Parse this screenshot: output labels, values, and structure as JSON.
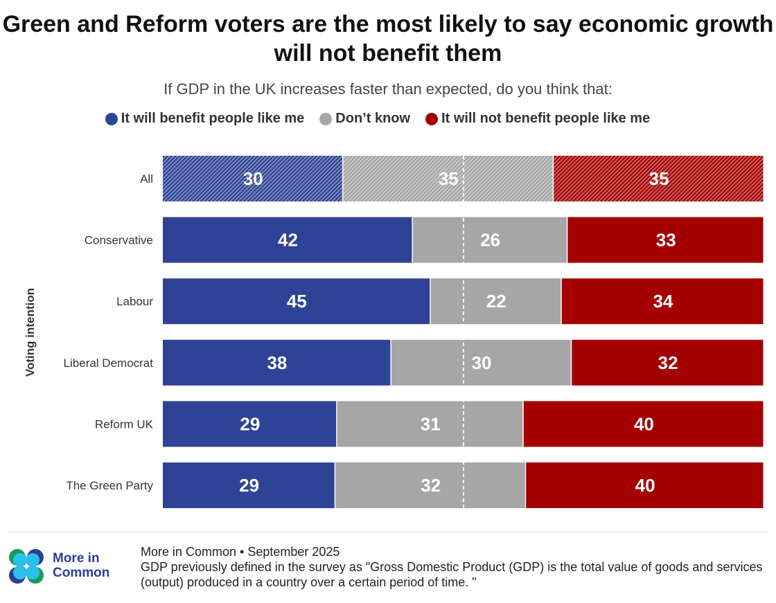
{
  "title": "Green and Reform voters are the most likely to say economic growth will not benefit them",
  "subtitle": "If GDP in the UK increases faster than expected, do you think that:",
  "colors": {
    "benefit": "#2f4396",
    "dont_know": "#a6a6a6",
    "not_benefit": "#a50000"
  },
  "chart_data": {
    "type": "bar",
    "orientation": "horizontal-stacked",
    "title": "Green and Reform voters are the most likely to say economic growth will not benefit them",
    "subtitle": "If GDP in the UK increases faster than expected, do you think that:",
    "ylabel": "Voting intention",
    "categories": [
      "All",
      "Conservative",
      "Labour",
      "Liberal Democrat",
      "Reform UK",
      "The Green Party"
    ],
    "series": [
      {
        "name": "It will benefit people like me",
        "values": [
          30,
          42,
          45,
          38,
          29,
          29
        ]
      },
      {
        "name": "Don’t know",
        "values": [
          35,
          26,
          22,
          30,
          31,
          32
        ]
      },
      {
        "name": "It will not benefit people like me",
        "values": [
          35,
          33,
          34,
          32,
          40,
          40
        ]
      }
    ],
    "hatched_categories": [
      "All"
    ],
    "midline": 50,
    "legend_placement": "top",
    "grid": false
  },
  "footer": {
    "logo_text_line1": "More in",
    "logo_text_line2": "Common",
    "source_line1": "More in Common • September 2025",
    "source_line2": "GDP previously defined in the survey as \"Gross Domestic Product (GDP) is the total value of goods and services (output) produced in a country over a certain period of time. \""
  }
}
